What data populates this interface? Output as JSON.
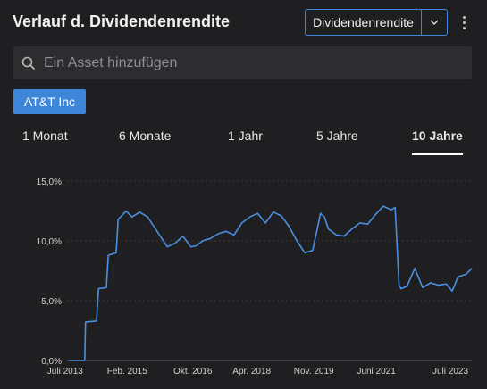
{
  "header": {
    "title": "Verlauf d. Dividendenrendite",
    "metric_select": {
      "value": "Dividendenrendite"
    }
  },
  "search": {
    "placeholder": "Ein Asset hinzufügen"
  },
  "assets": [
    {
      "label": "AT&T Inc"
    }
  ],
  "tabs": [
    {
      "label": "1 Monat",
      "active": false
    },
    {
      "label": "6 Monate",
      "active": false
    },
    {
      "label": "1 Jahr",
      "active": false
    },
    {
      "label": "5 Jahre",
      "active": false
    },
    {
      "label": "10 Jahre",
      "active": true
    }
  ],
  "colors": {
    "accent": "#3e86d9",
    "line": "#4a8fe0",
    "background": "#1f1f21"
  },
  "chart_data": {
    "type": "line",
    "ylim": [
      0,
      15
    ],
    "yticks": [
      {
        "value": 0,
        "label": "0,0%"
      },
      {
        "value": 5,
        "label": "5,0%"
      },
      {
        "value": 10,
        "label": "10,0%"
      },
      {
        "value": 15,
        "label": "15,0%"
      }
    ],
    "xlim": [
      2013.55,
      2023.85
    ],
    "xticks": [
      {
        "value": 2013.5,
        "label": "Juli 2013"
      },
      {
        "value": 2015.08,
        "label": "Feb. 2015"
      },
      {
        "value": 2016.75,
        "label": "Okt. 2016"
      },
      {
        "value": 2018.25,
        "label": "Apr. 2018"
      },
      {
        "value": 2019.83,
        "label": "Nov. 2019"
      },
      {
        "value": 2021.42,
        "label": "Juni 2021"
      },
      {
        "value": 2023.5,
        "label": "Juli 2023"
      }
    ],
    "series": [
      {
        "x": [
          2013.6,
          2014.0,
          2014.02,
          2014.3,
          2014.35,
          2014.55,
          2014.6,
          2014.8,
          2014.85,
          2015.0,
          2015.05,
          2015.2,
          2015.4,
          2015.6,
          2015.7,
          2015.9,
          2016.1,
          2016.3,
          2016.5,
          2016.7,
          2016.85,
          2017.0,
          2017.2,
          2017.4,
          2017.6,
          2017.8,
          2018.0,
          2018.2,
          2018.4,
          2018.6,
          2018.8,
          2019.0,
          2019.2,
          2019.4,
          2019.6,
          2019.8,
          2020.0,
          2020.1,
          2020.2,
          2020.4,
          2020.6,
          2020.8,
          2021.0,
          2021.2,
          2021.4,
          2021.6,
          2021.8,
          2021.9,
          2022.0,
          2022.05,
          2022.2,
          2022.4,
          2022.6,
          2022.8,
          2023.0,
          2023.2,
          2023.35,
          2023.5,
          2023.7,
          2023.85
        ],
        "y": [
          0,
          0,
          3.2,
          3.3,
          6.0,
          6.1,
          8.8,
          9.0,
          11.8,
          12.3,
          12.5,
          12.0,
          12.4,
          12.0,
          11.5,
          10.5,
          9.5,
          9.8,
          10.4,
          9.5,
          9.6,
          10.0,
          10.2,
          10.6,
          10.8,
          10.5,
          11.5,
          12.0,
          12.3,
          11.5,
          12.4,
          12.1,
          11.2,
          10.0,
          9.0,
          9.2,
          12.3,
          12.0,
          11.0,
          10.5,
          10.4,
          11.0,
          11.5,
          11.4,
          12.2,
          12.9,
          12.6,
          12.8,
          6.3,
          6.0,
          6.2,
          7.7,
          6.1,
          6.5,
          6.3,
          6.4,
          5.8,
          7.0,
          7.2,
          7.7
        ]
      }
    ]
  }
}
